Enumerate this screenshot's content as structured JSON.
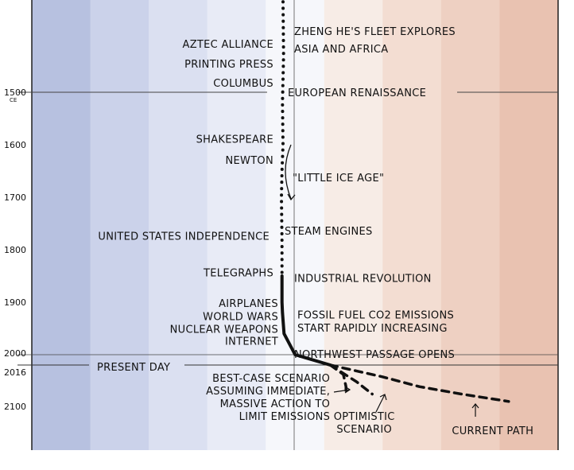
{
  "chart_data": {
    "type": "line",
    "title": "",
    "xlabel": "",
    "ylabel": "",
    "y_axis": {
      "orientation": "time runs downward",
      "ticks": [
        {
          "year": 1500,
          "label": "1500",
          "sub": "CE"
        },
        {
          "year": 1600,
          "label": "1600"
        },
        {
          "year": 1700,
          "label": "1700"
        },
        {
          "year": 1800,
          "label": "1800"
        },
        {
          "year": 1900,
          "label": "1900"
        },
        {
          "year": 2000,
          "label": "2000"
        },
        {
          "year": 2016,
          "label": "2016"
        },
        {
          "year": 2100,
          "label": "2100"
        }
      ]
    },
    "background": {
      "style": "vertical color bands from cold (blue) to warm (red)",
      "bands": [
        "#b7c1e0",
        "#cbd2ea",
        "#dbe0f1",
        "#e8ebf6",
        "#f6f7fb",
        "#f7ece6",
        "#f3ddd2",
        "#eed0c2",
        "#e9c2b1"
      ]
    },
    "series": [
      {
        "name": "",
        "style": "dotted",
        "points": [
          [
            1402,
            0.0
          ],
          [
            1460,
            0.01
          ],
          [
            1520,
            -0.01
          ],
          [
            1600,
            0.0
          ],
          [
            1650,
            -0.02
          ],
          [
            1700,
            -0.03
          ],
          [
            1780,
            -0.02
          ],
          [
            1850,
            -0.02
          ]
        ]
      },
      {
        "name": "",
        "style": "solid",
        "points": [
          [
            1850,
            -0.02
          ],
          [
            1900,
            -0.02
          ],
          [
            1920,
            -0.01
          ],
          [
            1960,
            0.02
          ],
          [
            2000,
            0.23
          ],
          [
            2016,
            0.9
          ]
        ]
      },
      {
        "name": "",
        "style": "dashed",
        "label": "BEST-CASE SCENARIO\nASSUMING IMMEDIATE,\nMASSIVE ACTION TO\nLIMIT EMISSIONS",
        "points": [
          [
            2016,
            0.9
          ],
          [
            2035,
            1.15
          ],
          [
            2060,
            1.2
          ],
          [
            2075,
            1.2
          ]
        ]
      },
      {
        "name": "",
        "style": "dashed",
        "label": "OPTIMISTIC\nSCENARIO",
        "points": [
          [
            2016,
            0.9
          ],
          [
            2050,
            1.4
          ],
          [
            2075,
            1.7
          ]
        ]
      },
      {
        "name": "",
        "style": "dashed",
        "label": "CURRENT PATH",
        "points": [
          [
            2016,
            0.9
          ],
          [
            2040,
            1.9
          ],
          [
            2060,
            2.6
          ],
          [
            2075,
            3.4
          ],
          [
            2090,
            4.3
          ]
        ]
      }
    ],
    "annotations_left": [
      {
        "year": 1455,
        "lines": [
          "AZTEC ALLIANCE"
        ]
      },
      {
        "year": 1475,
        "lines": [
          "PRINTING PRESS"
        ]
      },
      {
        "year": 1492,
        "lines": [
          "COLUMBUS"
        ]
      },
      {
        "year": 1590,
        "lines": [
          "SHAKESPEARE"
        ]
      },
      {
        "year": 1630,
        "lines": [
          "NEWTON"
        ]
      },
      {
        "year": 1775,
        "lines": [
          "UNITED STATES INDEPENDENCE"
        ]
      },
      {
        "year": 1845,
        "lines": [
          "TELEGRAPHS"
        ]
      },
      {
        "year": 1903,
        "lines": [
          "AIRPLANES"
        ]
      },
      {
        "year": 1928,
        "lines": [
          "WORLD WARS"
        ]
      },
      {
        "year": 1952,
        "lines": [
          "NUCLEAR WEAPONS"
        ]
      },
      {
        "year": 1975,
        "lines": [
          "INTERNET"
        ]
      }
    ],
    "annotations_right": [
      {
        "year": 1430,
        "lines": [
          "ZHENG HE'S FLEET EXPLORES"
        ]
      },
      {
        "year": 1455,
        "lines": [
          "ASIA AND AFRICA"
        ]
      },
      {
        "year": 1500,
        "lines": [
          "EUROPEAN RENAISSANCE"
        ]
      },
      {
        "year": 1655,
        "lines": [
          "\"LITTLE ICE AGE\""
        ]
      },
      {
        "year": 1765,
        "lines": [
          "STEAM ENGINES"
        ]
      },
      {
        "year": 1855,
        "lines": [
          "INDUSTRIAL REVOLUTION"
        ]
      },
      {
        "year": 1925,
        "lines": [
          "FOSSIL FUEL CO2 EMISSIONS"
        ]
      },
      {
        "year": 1950,
        "lines": [
          "START RAPIDLY INCREASING"
        ]
      },
      {
        "year": 1993,
        "lines": [
          "NORTHWEST PASSAGE OPENS"
        ]
      }
    ],
    "present_day_label": "PRESENT DAY"
  }
}
